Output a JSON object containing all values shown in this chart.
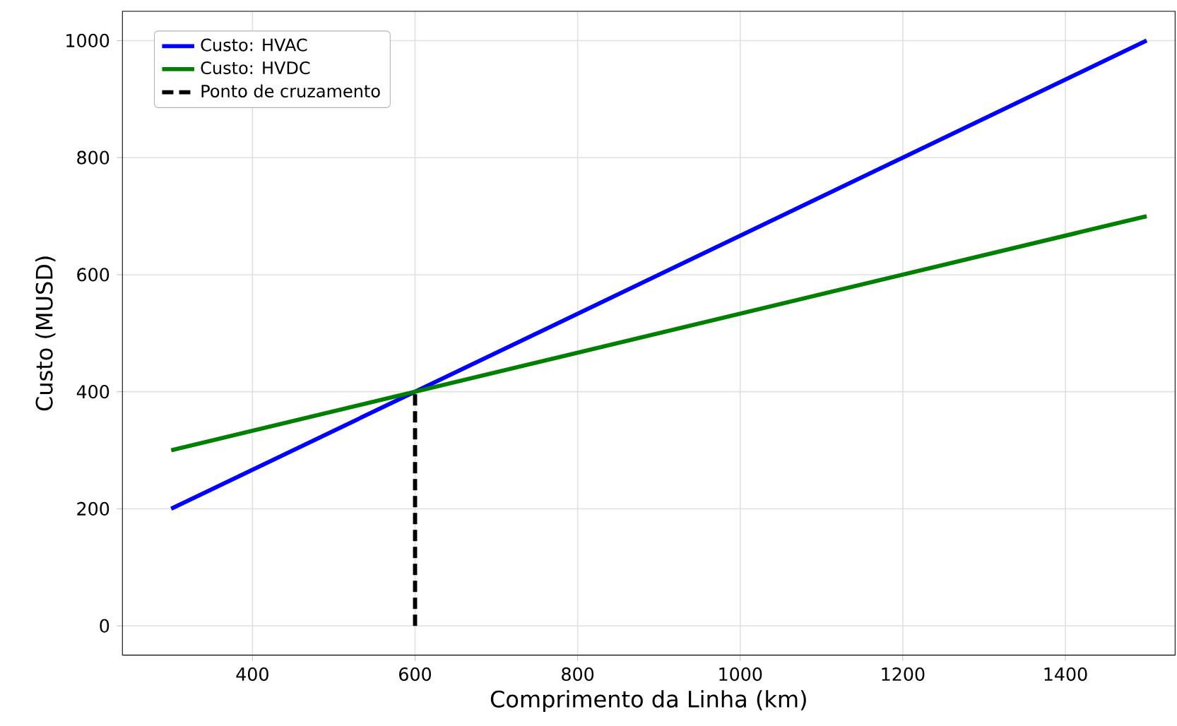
{
  "chart_data": {
    "type": "line",
    "xlabel": "Comprimento da Linha (km)",
    "ylabel": "Custo (MUSD)",
    "xlim": [
      240,
      1535
    ],
    "ylim": [
      -50,
      1050
    ],
    "xticks": [
      400,
      600,
      800,
      1000,
      1200,
      1400
    ],
    "yticks": [
      0,
      200,
      400,
      600,
      800,
      1000
    ],
    "grid": true,
    "legend": "top left",
    "marker": "none",
    "series": [
      {
        "name": "Custo: HVAC",
        "color": "#0000ff",
        "x": [
          300,
          1500
        ],
        "values": [
          200,
          1000
        ],
        "line_style": "solid"
      },
      {
        "name": "Custo: HVDC",
        "color": "#008000",
        "x": [
          300,
          1500
        ],
        "values": [
          300,
          700
        ],
        "line_style": "solid"
      },
      {
        "name": "Ponto de cruzamento",
        "color": "#000000",
        "x": [
          600,
          600
        ],
        "values": [
          0,
          400
        ],
        "line_style": "dashed"
      }
    ]
  }
}
